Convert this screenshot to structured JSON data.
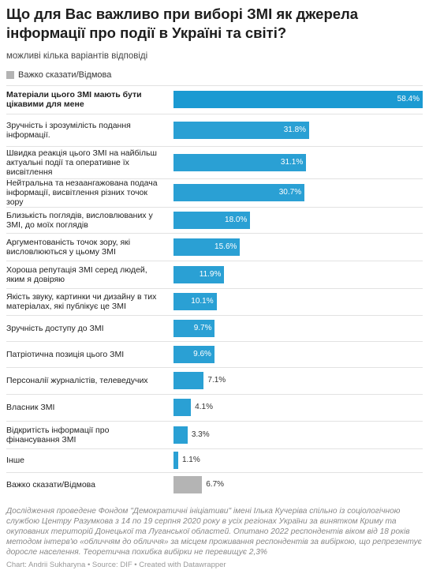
{
  "title": "Що для Вас важливо при виборі ЗМІ як джерела інформації про події в Україні та світі?",
  "subtitle": "можливі кілька варіантів відповіді",
  "legend": {
    "label": "Важко сказати/Відмова"
  },
  "colors": {
    "bar": "#2aa0d4",
    "highlight": "#1b9ad2",
    "muted": "#b4b4b4"
  },
  "chart_data": {
    "type": "bar",
    "orientation": "horizontal",
    "title": "Що для Вас важливо при виборі ЗМІ як джерела інформації про події в Україні та світі?",
    "subtitle": "можливі кілька варіантів відповіді",
    "unit": "%",
    "xlim": [
      0,
      58.4
    ],
    "grid": false,
    "legend": "top-left",
    "categories": [
      "Матеріали цього ЗМІ мають бути цікавими для мене",
      "Зручність і зрозумілість подання інформації.",
      "Швидка реакція цього ЗМІ на найбільш актуальні події та оперативне їх висвітлення",
      "Нейтральна та незаангажована подача інформації, висвітлення різних точок зору",
      "Близькість поглядів, висловлюваних у ЗМІ, до моїх поглядів",
      "Аргументованість точок зору, які висловлюються у цьому ЗМІ",
      "Хороша репутація ЗМІ серед людей, яким я довіряю",
      "Якість звуку, картинки чи дизайну в тих матеріалах, які публікує це ЗМІ",
      "Зручність доступу до ЗМІ",
      "Патріотична позиція цього ЗМІ",
      "Персоналії журналістів, телеведучих",
      "Власник ЗМІ",
      "Відкритість інформації про фінансування ЗМІ",
      "Інше",
      "Важко сказати/Відмова"
    ],
    "values": [
      58.4,
      31.8,
      31.1,
      30.7,
      18.0,
      15.6,
      11.9,
      10.1,
      9.7,
      9.6,
      7.1,
      4.1,
      3.3,
      1.1,
      6.7
    ],
    "value_labels": [
      "58.4%",
      "31.8%",
      "31.1%",
      "30.7%",
      "18.0%",
      "15.6%",
      "11.9%",
      "10.1%",
      "9.7%",
      "9.6%",
      "7.1%",
      "4.1%",
      "3.3%",
      "1.1%",
      "6.7%"
    ],
    "highlight_index": 0,
    "muted_index": 14
  },
  "footnote": "Дослідження проведене Фондом \"Демократичні ініціативи\" імені Ілька Кучеріва спільно із соціологічною службою Центру Разумкова з 14 по 19 серпня 2020 року в усіх регіонах України за винятком Криму та окупованих територій Донецької та Луганської областей. Опитано 2022 респондентів віком від 18 років методом інтерв'ю «обличчям до обличчя» за місцем проживання респондентів за вибіркою, що репрезентує доросле населення. Теоретична похибка вибірки не перевищує 2,3%",
  "credit": "Chart: Andrii Sukharyna • Source: DIF • Created with Datawrapper"
}
